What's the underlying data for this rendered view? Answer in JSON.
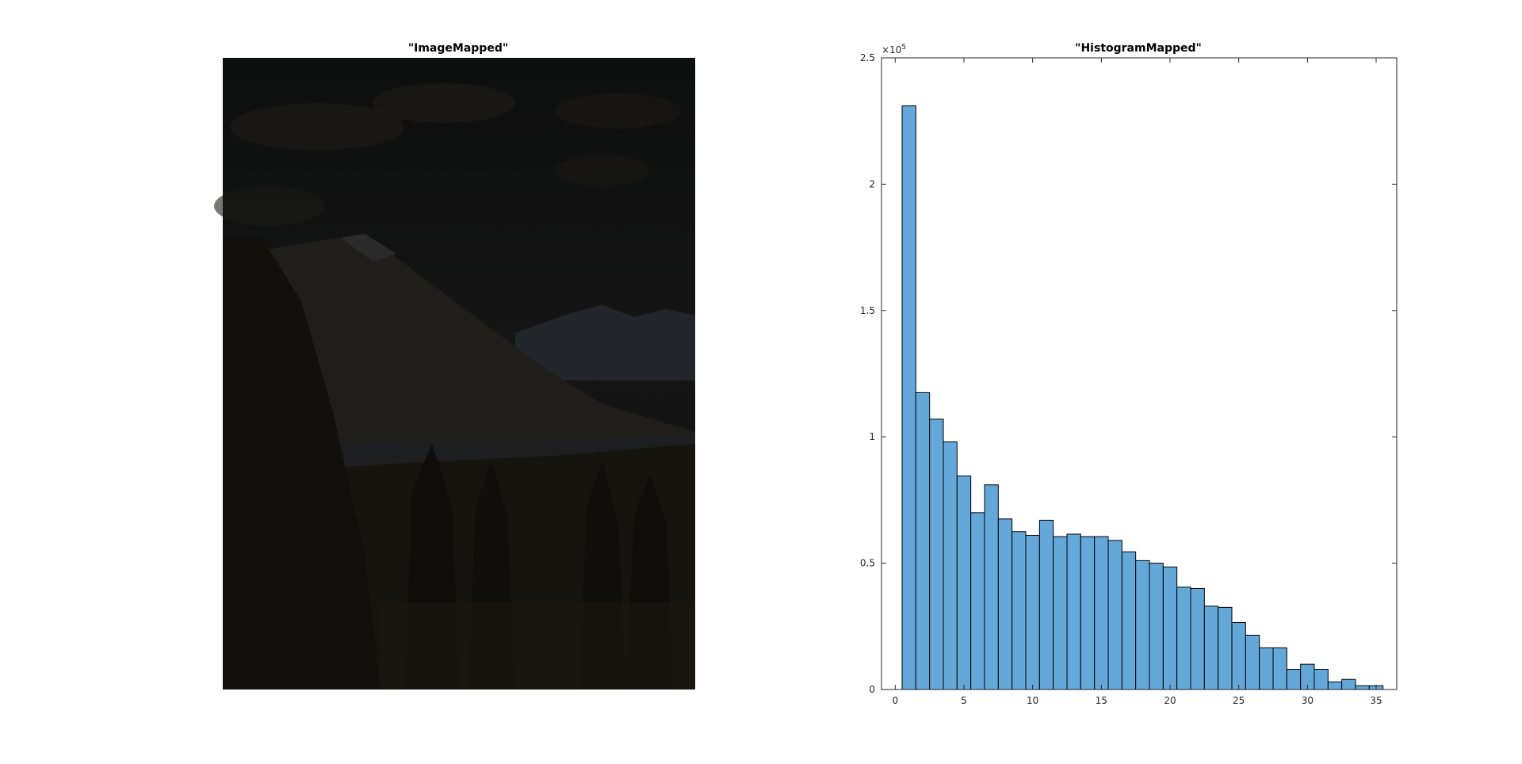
{
  "left_panel": {
    "title": "\"ImageMapped\""
  },
  "chart_data": {
    "type": "bar",
    "title": "\"HistogramMapped\"",
    "xlabel": "",
    "ylabel": "",
    "y_exponent_base": "×10",
    "y_exponent_power": "5",
    "xlim": [
      -1,
      36.5
    ],
    "ylim": [
      0,
      2.5
    ],
    "bin_edges_start": 0.5,
    "bin_width": 1,
    "xticks": [
      0,
      5,
      10,
      15,
      20,
      25,
      30,
      35
    ],
    "xtick_labels": [
      "0",
      "5",
      "10",
      "15",
      "20",
      "25",
      "30",
      "35"
    ],
    "yticks": [
      0,
      0.5,
      1,
      1.5,
      2,
      2.5
    ],
    "ytick_labels": [
      "0",
      "0.5",
      "1",
      "1.5",
      "2",
      "2.5"
    ],
    "values": [
      2.31,
      1.175,
      1.07,
      0.98,
      0.845,
      0.7,
      0.81,
      0.675,
      0.625,
      0.61,
      0.67,
      0.605,
      0.615,
      0.605,
      0.605,
      0.59,
      0.545,
      0.51,
      0.5,
      0.485,
      0.405,
      0.4,
      0.33,
      0.325,
      0.265,
      0.215,
      0.165,
      0.165,
      0.08,
      0.1,
      0.08,
      0.03,
      0.04,
      0.015,
      0.015
    ],
    "bar_color": "#64a7d9",
    "edge_color": "#000000",
    "grid": false
  }
}
